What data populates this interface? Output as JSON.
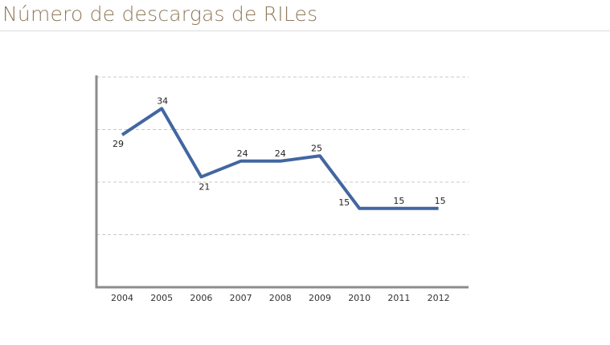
{
  "header": {
    "title": "Número de descargas de RILes"
  },
  "chart_data": {
    "type": "line",
    "title": "Número de descargas de RILes",
    "xlabel": "",
    "ylabel": "",
    "categories": [
      "2004",
      "2005",
      "2006",
      "2007",
      "2008",
      "2009",
      "2010",
      "2011",
      "2012"
    ],
    "series": [
      {
        "values": [
          29,
          34,
          21,
          24,
          24,
          25,
          15,
          15,
          15
        ],
        "color": "#4266a1"
      }
    ],
    "data_labels": [
      "29",
      "34",
      "21",
      "24",
      "24",
      "25",
      "15",
      "15",
      "15"
    ],
    "ylim": [
      0,
      40
    ],
    "y_gridlines": [
      10,
      20,
      30,
      40
    ],
    "grid": true,
    "grid_style": "dashed",
    "legend": "none",
    "axis_color": "#8c8c8c",
    "grid_color": "#c8c8c8"
  }
}
